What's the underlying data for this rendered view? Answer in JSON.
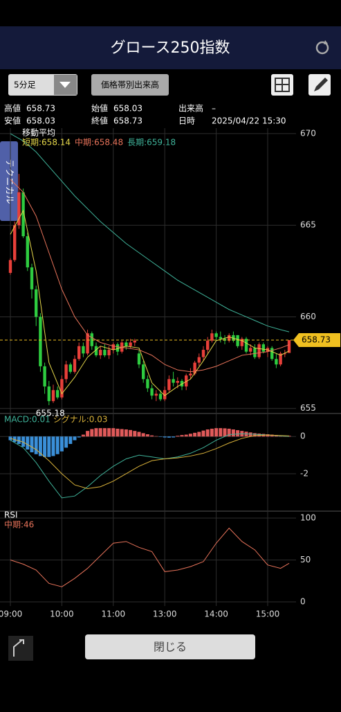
{
  "header": {
    "title": "グロース250指数"
  },
  "toolbar": {
    "interval": "5分足",
    "volume_button": "価格帯別出来高"
  },
  "info": [
    {
      "label": "高値",
      "value": "658.73"
    },
    {
      "label": "始値",
      "value": "658.03"
    },
    {
      "label": "出来高",
      "value": "–"
    },
    {
      "label": "安値",
      "value": "658.03"
    },
    {
      "label": "終値",
      "value": "658.73"
    },
    {
      "label": "日時",
      "value": "2025/04/22 15:30"
    }
  ],
  "side_tab": "テクニカル",
  "footer": {
    "close": "閉じる"
  },
  "chart_data": {
    "type": "candlestick",
    "ylim": [
      654.8,
      670.3
    ],
    "yticks": [
      655,
      660,
      665,
      670
    ],
    "xlim": [
      -0.5,
      67
    ],
    "xticks": [
      {
        "value": 0,
        "label": "09:00"
      },
      {
        "value": 12,
        "label": "10:00"
      },
      {
        "value": 24,
        "label": "11:00"
      },
      {
        "value": 36,
        "label": "13:00"
      },
      {
        "value": 48,
        "label": "14:00"
      },
      {
        "value": 60,
        "label": "15:00"
      }
    ],
    "up_color": "#e8403a",
    "down_color": "#2ecc40",
    "candles": [
      [
        662.4,
        663.2,
        662.3,
        663.1
      ],
      [
        663.1,
        665.2,
        663.0,
        665.0
      ],
      [
        665.0,
        667.8,
        664.8,
        666.8
      ],
      [
        666.8,
        667.0,
        664.3,
        664.4
      ],
      [
        664.4,
        664.6,
        662.5,
        662.7
      ],
      [
        662.7,
        662.9,
        661.0,
        661.5
      ],
      [
        661.5,
        661.7,
        659.5,
        660.0
      ],
      [
        660.0,
        660.2,
        657.0,
        657.3
      ],
      [
        657.3,
        657.5,
        655.8,
        656.2
      ],
      [
        656.2,
        656.5,
        655.18,
        655.4
      ],
      [
        655.4,
        656.3,
        655.3,
        656.0
      ],
      [
        656.0,
        656.2,
        655.5,
        655.6
      ],
      [
        655.6,
        656.8,
        655.5,
        656.6
      ],
      [
        656.6,
        657.6,
        656.4,
        657.4
      ],
      [
        657.4,
        657.5,
        656.9,
        657.0
      ],
      [
        657.0,
        657.9,
        656.9,
        657.7
      ],
      [
        657.7,
        658.6,
        657.6,
        658.4
      ],
      [
        658.4,
        658.6,
        657.8,
        658.0
      ],
      [
        658.0,
        659.3,
        657.9,
        659.1
      ],
      [
        659.1,
        659.2,
        658.2,
        658.4
      ],
      [
        658.4,
        658.6,
        657.8,
        657.9
      ],
      [
        657.9,
        658.4,
        657.7,
        658.2
      ],
      [
        658.2,
        658.5,
        657.8,
        657.9
      ],
      [
        657.9,
        658.4,
        657.7,
        658.2
      ],
      [
        658.2,
        658.6,
        658.0,
        658.5
      ],
      [
        658.5,
        658.6,
        657.9,
        658.1
      ],
      [
        658.1,
        658.7,
        658.0,
        658.6
      ],
      [
        658.6,
        658.7,
        658.2,
        658.4
      ],
      [
        658.4,
        658.8,
        658.3,
        658.6
      ],
      [
        658.6,
        658.8,
        658.4,
        658.7
      ],
      [
        658.0,
        658.2,
        657.2,
        657.4
      ],
      [
        657.4,
        657.6,
        656.4,
        656.6
      ],
      [
        656.6,
        656.8,
        655.9,
        656.1
      ],
      [
        656.1,
        656.3,
        655.5,
        655.7
      ],
      [
        655.7,
        656.0,
        655.4,
        655.8
      ],
      [
        655.8,
        656.0,
        655.4,
        655.5
      ],
      [
        655.5,
        656.2,
        655.4,
        656.0
      ],
      [
        656.0,
        656.8,
        655.9,
        656.6
      ],
      [
        656.6,
        657.0,
        656.2,
        656.4
      ],
      [
        656.4,
        656.7,
        656.1,
        656.5
      ],
      [
        656.5,
        656.6,
        656.0,
        656.2
      ],
      [
        656.2,
        656.9,
        656.0,
        656.8
      ],
      [
        656.8,
        657.2,
        656.6,
        656.9
      ],
      [
        656.9,
        657.6,
        656.8,
        657.5
      ],
      [
        657.5,
        658.0,
        657.3,
        657.8
      ],
      [
        657.8,
        658.4,
        657.6,
        658.2
      ],
      [
        658.2,
        658.9,
        658.0,
        658.7
      ],
      [
        658.7,
        659.3,
        658.6,
        659.1
      ],
      [
        659.1,
        659.2,
        658.7,
        658.9
      ],
      [
        658.9,
        659.2,
        658.6,
        658.8
      ],
      [
        658.8,
        659.0,
        658.5,
        658.7
      ],
      [
        658.7,
        659.1,
        658.6,
        659.0
      ],
      [
        659.0,
        659.2,
        658.6,
        658.7
      ],
      [
        659.0,
        659.0,
        658.3,
        658.4
      ],
      [
        658.4,
        658.9,
        658.2,
        658.8
      ],
      [
        658.8,
        658.9,
        658.0,
        658.1
      ],
      [
        658.1,
        658.5,
        657.9,
        658.3
      ],
      [
        658.3,
        658.5,
        657.7,
        657.8
      ],
      [
        657.8,
        658.6,
        657.7,
        658.5
      ],
      [
        658.5,
        658.6,
        658.0,
        658.1
      ],
      [
        658.1,
        658.4,
        657.8,
        658.3
      ],
      [
        658.3,
        658.4,
        657.6,
        657.7
      ],
      [
        657.7,
        658.0,
        657.2,
        657.4
      ],
      [
        657.4,
        658.1,
        657.3,
        658.0
      ],
      [
        658.0,
        658.2,
        657.8,
        658.0
      ],
      [
        658.03,
        658.73,
        658.03,
        658.73
      ]
    ],
    "low_annotation": 655.18,
    "low_index": 9,
    "last_price": 658.73,
    "last_color": "#f0c020",
    "ma_title": "移動平均",
    "ma_x": [
      0,
      3,
      6,
      9,
      12,
      15,
      18,
      21,
      24,
      27,
      30,
      33,
      36,
      39,
      42,
      45,
      48,
      51,
      54,
      57,
      60,
      63,
      65
    ],
    "ma_series": [
      {
        "name": "短期",
        "legend_label": "短期:658.14",
        "color": "#e6d84a",
        "values": [
          664.5,
          665.8,
          662.5,
          657.5,
          655.8,
          656.7,
          657.8,
          658.4,
          658.2,
          658.4,
          658.3,
          656.4,
          655.7,
          656.2,
          656.6,
          657.6,
          658.7,
          658.9,
          658.7,
          658.3,
          658.2,
          657.9,
          658.14
        ]
      },
      {
        "name": "中期",
        "legend_label": "中期:658.48",
        "color": "#e8735a",
        "values": [
          667.5,
          666.8,
          665.5,
          663.5,
          661.5,
          660.0,
          659.0,
          658.6,
          658.4,
          658.3,
          658.2,
          657.9,
          657.4,
          657.1,
          657.0,
          657.1,
          657.3,
          657.6,
          657.9,
          658.0,
          658.1,
          658.3,
          658.48
        ]
      },
      {
        "name": "長期",
        "legend_label": "長期:659.18",
        "color": "#3fb39a",
        "values": [
          670.0,
          669.6,
          669.0,
          668.2,
          667.4,
          666.6,
          665.9,
          665.2,
          664.6,
          664.0,
          663.5,
          663.0,
          662.5,
          662.0,
          661.6,
          661.2,
          660.8,
          660.4,
          660.1,
          659.8,
          659.5,
          659.3,
          659.18
        ]
      }
    ],
    "macd": {
      "ylim": [
        -3.9,
        1.2
      ],
      "yticks": [
        0,
        -2
      ],
      "hist_pos_color": "#e05a5a",
      "hist_neg_color": "#3a8fd8",
      "histogram": [
        -0.2,
        -0.3,
        -0.4,
        -0.55,
        -0.7,
        -0.85,
        -0.95,
        -1.05,
        -1.1,
        -1.1,
        -1.05,
        -0.95,
        -0.8,
        -0.6,
        -0.4,
        -0.2,
        -0.05,
        0.1,
        0.3,
        0.4,
        0.45,
        0.45,
        0.45,
        0.45,
        0.45,
        0.42,
        0.4,
        0.38,
        0.35,
        0.3,
        0.25,
        0.18,
        0.12,
        0.06,
        0.02,
        -0.02,
        -0.05,
        -0.06,
        -0.05,
        0.04,
        0.08,
        0.1,
        0.15,
        0.2,
        0.25,
        0.32,
        0.38,
        0.42,
        0.45,
        0.45,
        0.44,
        0.42,
        0.38,
        0.34,
        0.3,
        0.26,
        0.22,
        0.18,
        0.16,
        0.14,
        0.12,
        0.1,
        0.08,
        0.06,
        0.05,
        0.04
      ],
      "x": [
        0,
        3,
        6,
        9,
        12,
        15,
        18,
        21,
        24,
        27,
        30,
        33,
        36,
        39,
        42,
        45,
        48,
        51,
        54,
        57,
        60,
        63,
        65
      ],
      "series": [
        {
          "name": "MACD",
          "legend_label": "MACD:0.01",
          "color": "#3fb39a",
          "values": [
            -0.2,
            -0.6,
            -1.4,
            -2.4,
            -3.3,
            -3.2,
            -2.7,
            -2.1,
            -1.6,
            -1.2,
            -1.0,
            -1.1,
            -1.2,
            -1.1,
            -0.9,
            -0.6,
            -0.2,
            0.1,
            0.15,
            0.12,
            0.08,
            0.03,
            0.01
          ]
        },
        {
          "name": "シグナル",
          "legend_label": "シグナル:0.03",
          "color": "#d9b23a",
          "values": [
            -0.1,
            -0.3,
            -0.7,
            -1.3,
            -2.0,
            -2.6,
            -2.8,
            -2.7,
            -2.4,
            -2.0,
            -1.6,
            -1.3,
            -1.2,
            -1.15,
            -1.05,
            -0.9,
            -0.65,
            -0.35,
            -0.1,
            0.05,
            0.08,
            0.05,
            0.03
          ]
        }
      ]
    },
    "rsi": {
      "title": "RSI",
      "ylim": [
        -5,
        106.6
      ],
      "yticks": [
        0,
        50,
        100
      ],
      "x": [
        0,
        3,
        6,
        9,
        12,
        15,
        18,
        21,
        24,
        27,
        30,
        33,
        36,
        39,
        42,
        45,
        48,
        51,
        54,
        57,
        60,
        63,
        65
      ],
      "series": [
        {
          "name": "中期",
          "legend_label": "中期:46",
          "color": "#e8735a",
          "values": [
            50,
            45,
            38,
            22,
            18,
            28,
            40,
            55,
            70,
            72,
            65,
            60,
            36,
            38,
            42,
            48,
            70,
            88,
            72,
            62,
            44,
            40,
            46
          ]
        }
      ]
    }
  }
}
